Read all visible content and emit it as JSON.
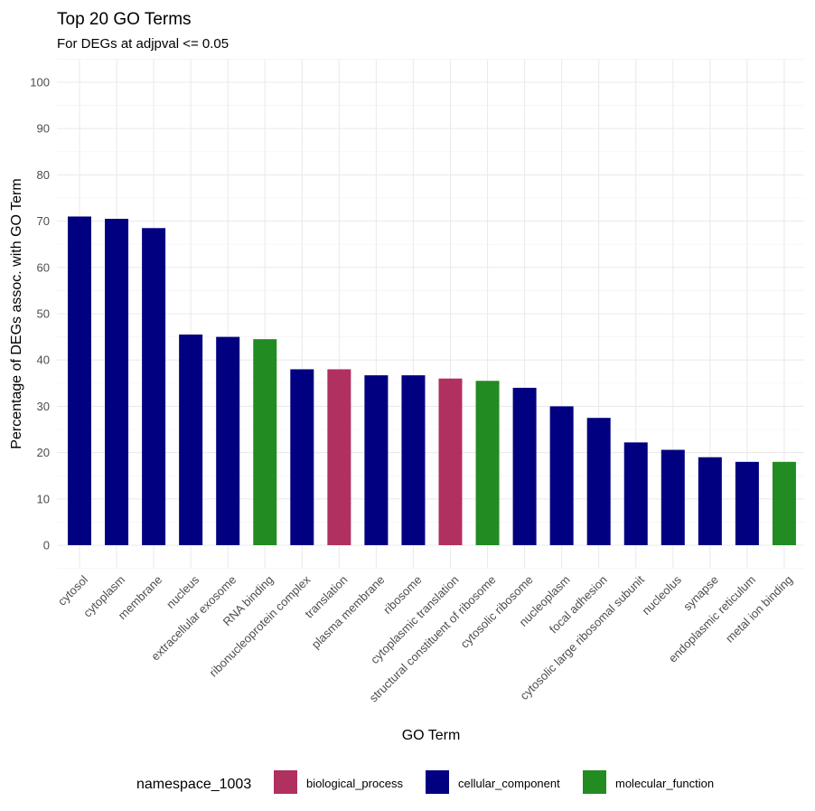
{
  "chart_data": {
    "type": "bar",
    "title": "Top 20 GO Terms",
    "subtitle": "For DEGs at adjpval <= 0.05",
    "xlabel": "GO Term",
    "ylabel": "Percentage of DEGs assoc. with GO Term",
    "ylim": [
      0,
      100
    ],
    "yticks": [
      0,
      10,
      20,
      30,
      40,
      50,
      60,
      70,
      80,
      90,
      100
    ],
    "grid": true,
    "legend": {
      "title": "namespace_1003",
      "position": "bottom",
      "entries": [
        {
          "name": "biological_process",
          "color": "#B03060"
        },
        {
          "name": "cellular_component",
          "color": "#000080"
        },
        {
          "name": "molecular_function",
          "color": "#228B22"
        }
      ]
    },
    "categories": [
      "cytosol",
      "cytoplasm",
      "membrane",
      "nucleus",
      "extracellular exosome",
      "RNA binding",
      "ribonucleoprotein complex",
      "translation",
      "plasma membrane",
      "ribosome",
      "cytoplasmic translation",
      "structural constituent of ribosome",
      "cytosolic ribosome",
      "nucleoplasm",
      "focal adhesion",
      "cytosolic large ribosomal subunit",
      "nucleolus",
      "synapse",
      "endoplasmic reticulum",
      "metal ion binding"
    ],
    "values": [
      71.0,
      70.5,
      68.5,
      45.5,
      45.0,
      44.5,
      38.0,
      38.0,
      36.7,
      36.7,
      36.0,
      35.5,
      34.0,
      30.0,
      27.5,
      22.2,
      20.6,
      19.0,
      18.0,
      18.0
    ],
    "namespaces": [
      "cellular_component",
      "cellular_component",
      "cellular_component",
      "cellular_component",
      "cellular_component",
      "molecular_function",
      "cellular_component",
      "biological_process",
      "cellular_component",
      "cellular_component",
      "biological_process",
      "molecular_function",
      "cellular_component",
      "cellular_component",
      "cellular_component",
      "cellular_component",
      "cellular_component",
      "cellular_component",
      "cellular_component",
      "molecular_function"
    ]
  }
}
